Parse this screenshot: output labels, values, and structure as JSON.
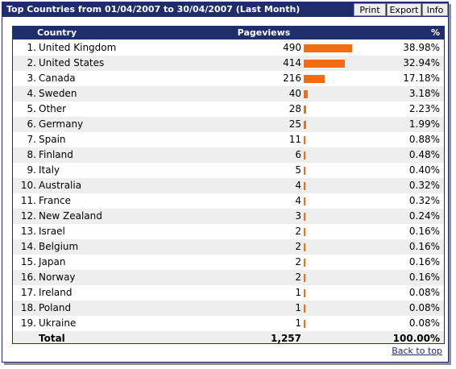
{
  "panel": {
    "title": "Top Countries from 01/04/2007 to 30/04/2007 (Last Month)",
    "buttons": {
      "print": "Print",
      "export": "Export",
      "info": "Info"
    }
  },
  "table": {
    "headers": {
      "country": "Country",
      "pageviews": "Pageviews",
      "percent": "%"
    },
    "rows": [
      {
        "rank": "1.",
        "country": "United Kingdom",
        "pageviews": "490",
        "value": 490,
        "percent": "38.98%"
      },
      {
        "rank": "2.",
        "country": "United States",
        "pageviews": "414",
        "value": 414,
        "percent": "32.94%"
      },
      {
        "rank": "3.",
        "country": "Canada",
        "pageviews": "216",
        "value": 216,
        "percent": "17.18%"
      },
      {
        "rank": "4.",
        "country": "Sweden",
        "pageviews": "40",
        "value": 40,
        "percent": "3.18%"
      },
      {
        "rank": "5.",
        "country": "Other",
        "pageviews": "28",
        "value": 28,
        "percent": "2.23%"
      },
      {
        "rank": "6.",
        "country": "Germany",
        "pageviews": "25",
        "value": 25,
        "percent": "1.99%"
      },
      {
        "rank": "7.",
        "country": "Spain",
        "pageviews": "11",
        "value": 11,
        "percent": "0.88%"
      },
      {
        "rank": "8.",
        "country": "Finland",
        "pageviews": "6",
        "value": 6,
        "percent": "0.48%"
      },
      {
        "rank": "9.",
        "country": "Italy",
        "pageviews": "5",
        "value": 5,
        "percent": "0.40%"
      },
      {
        "rank": "10.",
        "country": "Australia",
        "pageviews": "4",
        "value": 4,
        "percent": "0.32%"
      },
      {
        "rank": "11.",
        "country": "France",
        "pageviews": "4",
        "value": 4,
        "percent": "0.32%"
      },
      {
        "rank": "12.",
        "country": "New Zealand",
        "pageviews": "3",
        "value": 3,
        "percent": "0.24%"
      },
      {
        "rank": "13.",
        "country": "Israel",
        "pageviews": "2",
        "value": 2,
        "percent": "0.16%"
      },
      {
        "rank": "14.",
        "country": "Belgium",
        "pageviews": "2",
        "value": 2,
        "percent": "0.16%"
      },
      {
        "rank": "15.",
        "country": "Japan",
        "pageviews": "2",
        "value": 2,
        "percent": "0.16%"
      },
      {
        "rank": "16.",
        "country": "Norway",
        "pageviews": "2",
        "value": 2,
        "percent": "0.16%"
      },
      {
        "rank": "17.",
        "country": "Ireland",
        "pageviews": "1",
        "value": 1,
        "percent": "0.08%"
      },
      {
        "rank": "18.",
        "country": "Poland",
        "pageviews": "1",
        "value": 1,
        "percent": "0.08%"
      },
      {
        "rank": "19.",
        "country": "Ukraine",
        "pageviews": "1",
        "value": 1,
        "percent": "0.08%"
      }
    ],
    "total": {
      "label": "Total",
      "pageviews": "1,257",
      "percent": "100.00%"
    }
  },
  "footer": {
    "back_to_top": "Back to top"
  },
  "colors": {
    "header_bg": "#1f2d6b",
    "bar": "#f26c12",
    "stripe": "#eeeeee"
  }
}
